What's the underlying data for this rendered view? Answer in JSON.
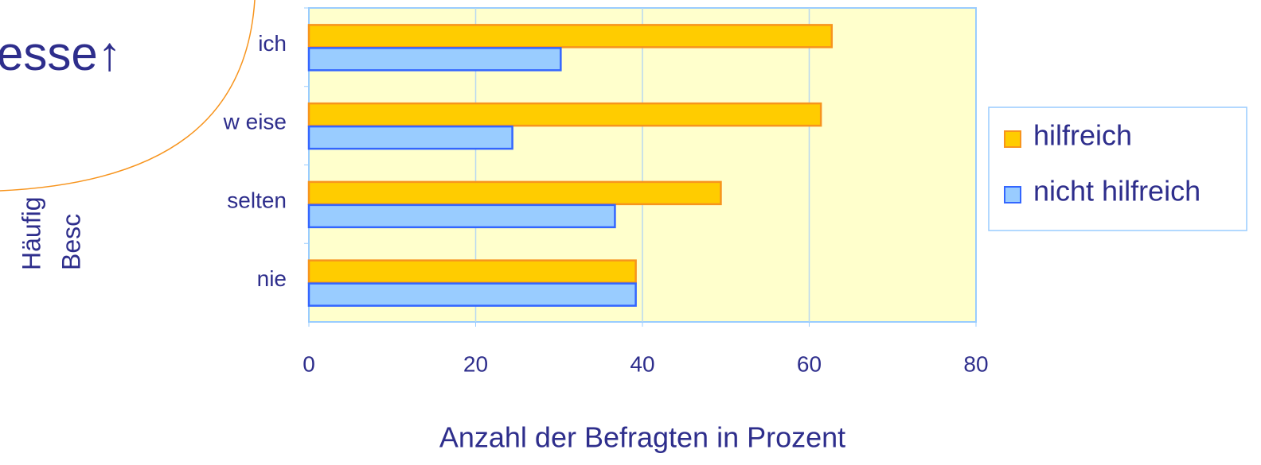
{
  "chart_data": {
    "type": "bar",
    "orientation": "horizontal",
    "overlay_text": "esse↑",
    "y_label_lines": [
      "Häufig",
      "Besc"
    ],
    "x_label": "Anzahl der Befragten in Prozent",
    "categories": [
      "ich",
      "w eise",
      "selten",
      "nie"
    ],
    "series": [
      {
        "name": "hilfreich",
        "color": "#ffcc00",
        "edge": "#f7941d",
        "values": [
          62.7,
          61.4,
          49.4,
          39.2
        ]
      },
      {
        "name": "nicht hilfreich",
        "color": "#99ccff",
        "edge": "#3366ff",
        "values": [
          30.2,
          24.4,
          36.7,
          39.2
        ]
      }
    ],
    "xlim": [
      0,
      80
    ],
    "xticks": [
      0,
      20,
      40,
      60,
      80
    ],
    "grid": true
  }
}
